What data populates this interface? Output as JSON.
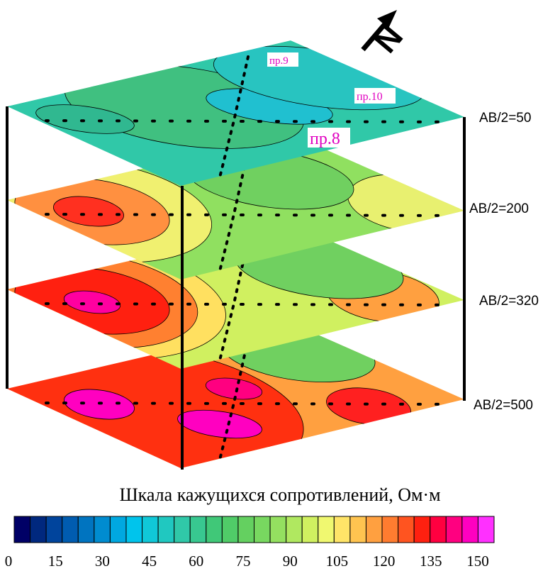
{
  "north": "N",
  "layers": [
    {
      "label": "AB/2=50"
    },
    {
      "label": "AB/2=200"
    },
    {
      "label": "AB/2=320"
    },
    {
      "label": "AB/2=500"
    }
  ],
  "profiles": [
    "пр.9",
    "пр.10",
    "пр.8"
  ],
  "color_scale": {
    "title": "Шкала кажущихся сопротивлений, Ом·м",
    "ticks": [
      0,
      15,
      30,
      45,
      60,
      75,
      90,
      105,
      120,
      135,
      150
    ],
    "lim": [
      0,
      150
    ],
    "colors": [
      "#000066",
      "#00287e",
      "#00449c",
      "#005cb0",
      "#0074c0",
      "#008cd0",
      "#00a8e0",
      "#00c4ec",
      "#10c8d8",
      "#20c8c0",
      "#30c8a8",
      "#38c890",
      "#40c878",
      "#50cc68",
      "#64d060",
      "#78d860",
      "#94e060",
      "#b0e860",
      "#d0f060",
      "#f0f870",
      "#ffe468",
      "#ffc450",
      "#ffa040",
      "#ff7c30",
      "#ff5420",
      "#ff2010",
      "#ff0040",
      "#ff0080",
      "#ff00c0",
      "#ff30ff"
    ]
  }
}
